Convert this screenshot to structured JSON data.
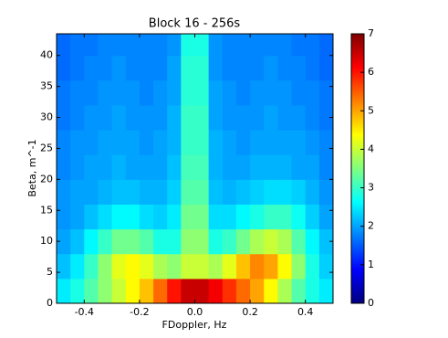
{
  "chart_data": {
    "type": "heatmap",
    "title": "Block 16 - 256s",
    "xlabel": "FDoppler, Hz",
    "ylabel": "Beta, m^-1",
    "cmap": "jet",
    "x_edges": [
      -0.5,
      -0.45,
      -0.4,
      -0.35,
      -0.3,
      -0.25,
      -0.2,
      -0.15,
      -0.1,
      -0.05,
      0,
      0.05,
      0.1,
      0.15,
      0.2,
      0.25,
      0.3,
      0.35,
      0.4,
      0.45,
      0.5
    ],
    "y_edges": [
      0,
      4,
      8,
      12,
      16,
      20,
      24,
      28,
      32,
      36,
      40,
      43.5
    ],
    "z": [
      [
        2.5,
        2.8,
        3.2,
        3.6,
        4.0,
        4.4,
        4.8,
        5.4,
        6.0,
        6.5,
        6.5,
        6.2,
        5.8,
        5.4,
        5.0,
        4.4,
        3.8,
        3.2,
        2.8,
        2.5
      ],
      [
        2.2,
        2.5,
        3.0,
        3.6,
        4.2,
        4.4,
        4.2,
        3.8,
        3.6,
        4.0,
        4.0,
        3.8,
        4.2,
        4.8,
        5.2,
        5.0,
        4.4,
        3.6,
        2.8,
        2.3
      ],
      [
        2.0,
        2.2,
        2.6,
        3.0,
        3.4,
        3.4,
        3.2,
        2.8,
        2.8,
        3.6,
        3.6,
        2.8,
        3.0,
        3.4,
        3.8,
        4.0,
        3.8,
        3.2,
        2.6,
        2.2
      ],
      [
        1.9,
        2.0,
        2.2,
        2.4,
        2.6,
        2.6,
        2.4,
        2.3,
        2.5,
        3.4,
        3.4,
        2.4,
        2.4,
        2.6,
        2.8,
        3.0,
        3.0,
        2.7,
        2.3,
        2.0
      ],
      [
        1.9,
        2.0,
        2.0,
        2.1,
        2.2,
        2.2,
        2.1,
        2.1,
        2.3,
        3.2,
        3.2,
        2.2,
        2.1,
        2.2,
        2.3,
        2.4,
        2.4,
        2.3,
        2.1,
        1.9
      ],
      [
        1.8,
        1.9,
        2.0,
        2.0,
        2.1,
        2.0,
        2.0,
        2.0,
        2.2,
        3.1,
        3.1,
        2.1,
        2.0,
        2.0,
        2.1,
        2.1,
        2.1,
        2.0,
        2.0,
        1.8
      ],
      [
        1.8,
        1.9,
        1.9,
        2.0,
        2.0,
        2.0,
        1.9,
        2.0,
        2.1,
        3.0,
        3.0,
        2.1,
        2.0,
        1.9,
        2.0,
        2.0,
        2.0,
        2.0,
        1.9,
        1.8
      ],
      [
        1.7,
        1.8,
        1.9,
        1.9,
        2.0,
        1.9,
        1.9,
        1.9,
        2.1,
        3.0,
        3.0,
        2.0,
        1.9,
        1.9,
        1.9,
        2.0,
        1.9,
        1.9,
        1.8,
        1.7
      ],
      [
        1.7,
        1.8,
        1.8,
        1.9,
        1.9,
        1.9,
        1.8,
        1.9,
        2.0,
        2.9,
        2.9,
        2.0,
        1.9,
        1.8,
        1.9,
        1.9,
        1.9,
        1.8,
        1.8,
        1.7
      ],
      [
        1.6,
        1.7,
        1.8,
        1.8,
        1.9,
        1.8,
        1.8,
        1.8,
        2.0,
        2.9,
        2.9,
        1.9,
        1.8,
        1.8,
        1.8,
        1.9,
        1.8,
        1.8,
        1.7,
        1.6
      ],
      [
        1.6,
        1.7,
        1.7,
        1.8,
        1.8,
        1.8,
        1.8,
        1.8,
        1.9,
        2.8,
        2.8,
        1.9,
        1.8,
        1.8,
        1.8,
        1.8,
        1.8,
        1.7,
        1.7,
        1.6
      ]
    ],
    "xlim": [
      -0.5,
      0.5
    ],
    "ylim": [
      0,
      43.5
    ],
    "xticks": [
      -0.4,
      -0.2,
      {
        "value": 0,
        "label": "0.0"
      },
      0.2,
      0.4
    ],
    "yticks": [
      0,
      5,
      10,
      15,
      20,
      25,
      30,
      35,
      40
    ],
    "clim": [
      0,
      7
    ],
    "cticks": [
      0,
      1,
      2,
      3,
      4,
      5,
      6,
      7
    ]
  }
}
